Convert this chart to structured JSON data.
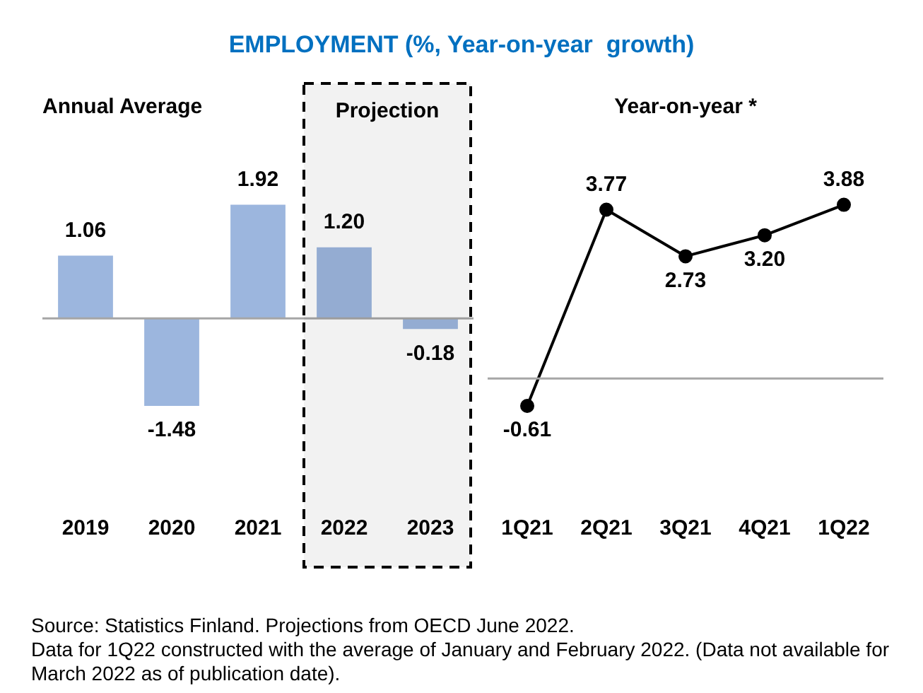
{
  "chart_data": [
    {
      "type": "bar",
      "title": "EMPLOYMENT (%, Year-on-year  growth)",
      "subtitle": "Annual Average",
      "categories": [
        "2019",
        "2020",
        "2021",
        "2022",
        "2023"
      ],
      "values": [
        1.06,
        -1.48,
        1.92,
        1.2,
        -0.18
      ],
      "value_labels": [
        "1.06",
        "-1.48",
        "1.92",
        "1.20",
        "-0.18"
      ],
      "color": "#9cb6de",
      "data_labels": true,
      "grid": false,
      "legend": false,
      "bands": [
        {
          "axis": "x",
          "from": "2022",
          "to": "2023",
          "label": "Projection",
          "color": "#000000"
        }
      ],
      "annotations": [
        "Source: Statistics Finland. Projections from OECD June 2022.",
        "Data for 1Q22 constructed with the average of January and February 2022. (Data not available for March 2022 as of publication date)."
      ]
    },
    {
      "type": "line",
      "title": "Year-on-year *",
      "categories": [
        "1Q21",
        "2Q21",
        "3Q21",
        "4Q21",
        "1Q22"
      ],
      "values": [
        -0.61,
        3.77,
        2.73,
        3.2,
        3.88
      ],
      "value_labels": [
        "-0.61",
        "3.77",
        "2.73",
        "3.20",
        "3.88"
      ],
      "color": "#000000",
      "marker": "circle",
      "line_style": "solid",
      "data_labels": true,
      "grid": false,
      "legend": false
    }
  ]
}
